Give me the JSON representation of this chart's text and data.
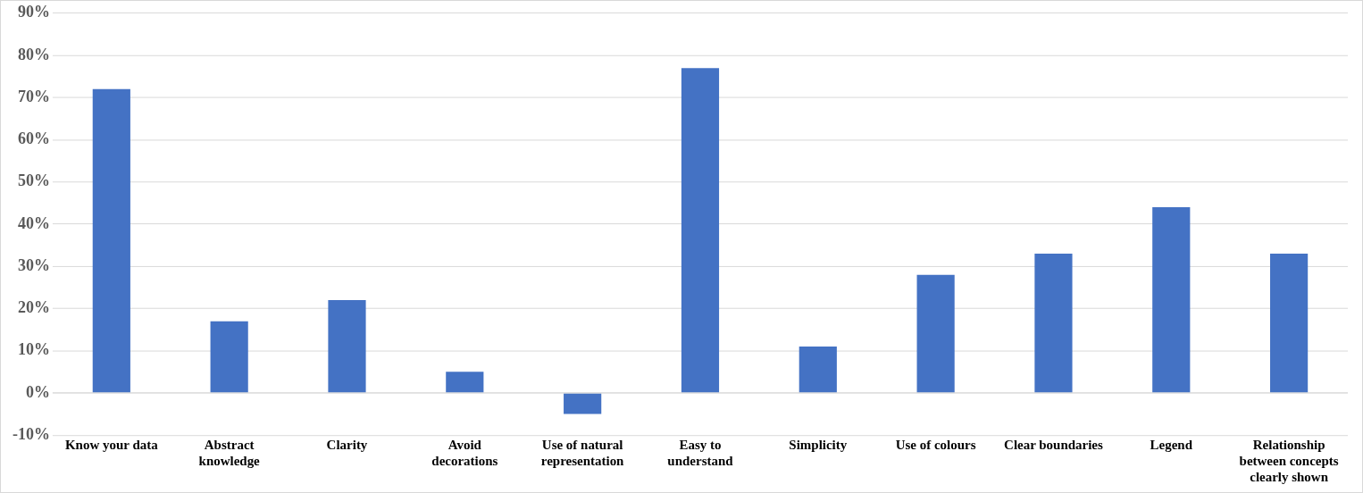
{
  "chart_data": {
    "type": "bar",
    "categories": [
      "Know your data",
      "Abstract knowledge",
      "Clarity",
      "Avoid decorations",
      "Use of natural representation",
      "Easy to understand",
      "Simplicity",
      "Use of colours",
      "Clear boundaries",
      "Legend",
      "Relationship between concepts clearly shown"
    ],
    "values": [
      72,
      17,
      22,
      5,
      -5,
      77,
      11,
      28,
      33,
      44,
      33
    ],
    "color": "#4472c4",
    "ylim": [
      -10,
      90
    ],
    "yticks": [
      {
        "value": -10,
        "label": "-10%"
      },
      {
        "value": 0,
        "label": "0%"
      },
      {
        "value": 10,
        "label": "10%"
      },
      {
        "value": 20,
        "label": "20%"
      },
      {
        "value": 30,
        "label": "30%"
      },
      {
        "value": 40,
        "label": "40%"
      },
      {
        "value": 50,
        "label": "50%"
      },
      {
        "value": 60,
        "label": "60%"
      },
      {
        "value": 70,
        "label": "70%"
      },
      {
        "value": 80,
        "label": "80%"
      },
      {
        "value": 90,
        "label": "90%"
      }
    ],
    "grid": "y"
  }
}
